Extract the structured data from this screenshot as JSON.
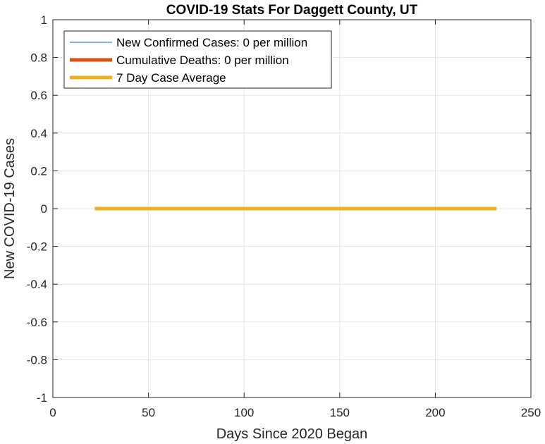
{
  "chart_data": {
    "type": "line",
    "title": "COVID-19 Stats For Daggett County, UT",
    "xlabel": "Days Since 2020 Began",
    "ylabel": "New COVID-19 Cases",
    "xlim": [
      0,
      250
    ],
    "ylim": [
      -1,
      1
    ],
    "xticks": [
      0,
      50,
      100,
      150,
      200,
      250
    ],
    "yticks": [
      1,
      0.8,
      0.6,
      0.4,
      0.2,
      0,
      -0.2,
      -0.4,
      -0.6,
      -0.8,
      -1
    ],
    "grid": true,
    "legend_position": "top-left",
    "series": [
      {
        "name": "New Confirmed Cases: 0 per million",
        "color": "#0072BD",
        "style": "thin",
        "x": [
          22,
          232
        ],
        "y": [
          0,
          0
        ]
      },
      {
        "name": "Cumulative Deaths: 0 per million",
        "color": "#D95319",
        "style": "thick",
        "x": [
          22,
          232
        ],
        "y": [
          0,
          0
        ]
      },
      {
        "name": "7 Day Case Average",
        "color": "#EDB120",
        "style": "thick",
        "x": [
          22,
          232
        ],
        "y": [
          0,
          0
        ]
      }
    ]
  }
}
